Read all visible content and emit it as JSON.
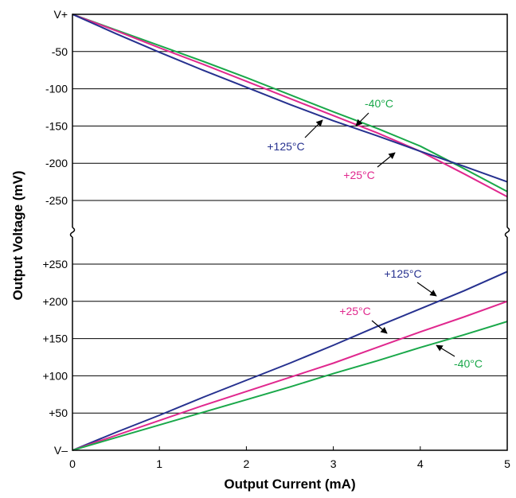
{
  "chart_data": {
    "type": "line",
    "title": "",
    "xlabel": "Output Current (mA)",
    "ylabel": "Output Voltage (mV)",
    "xlim": [
      0,
      5
    ],
    "x_ticks": [
      "0",
      "1",
      "2",
      "3",
      "4",
      "5"
    ],
    "grid": true,
    "legend": "none (series labeled by inline annotations with arrows)",
    "axis_break": "broken y-axis between -250 and +250",
    "panels": [
      {
        "id": "top",
        "reference": "V+",
        "ylim": [
          -250,
          0
        ],
        "y_ticks": [
          "V+",
          "-50",
          "-100",
          "-150",
          "-200",
          "-250"
        ],
        "x": [
          0,
          0.5,
          1,
          1.5,
          2,
          2.5,
          3,
          3.5,
          4,
          4.5,
          5
        ],
        "series": [
          {
            "name": "-40°C",
            "color": "#1aa84a",
            "values": [
              0,
              -21,
              -42,
              -63,
              -85,
              -108,
              -131,
              -153,
              -177,
              -207,
              -238
            ]
          },
          {
            "name": "+25°C",
            "color": "#e0288e",
            "values": [
              0,
              -22,
              -45,
              -67,
              -90,
              -113,
              -136,
              -159,
              -184,
              -214,
              -245
            ]
          },
          {
            "name": "+125°C",
            "color": "#26318f",
            "values": [
              0,
              -26,
              -51,
              -75,
              -98,
              -121,
              -143,
              -163,
              -184,
              -204,
              -225
            ]
          }
        ],
        "annotations": [
          {
            "text": "-40°C",
            "color": "#1aa84a"
          },
          {
            "text": "+125°C",
            "color": "#26318f"
          },
          {
            "text": "+25°C",
            "color": "#e0288e"
          }
        ]
      },
      {
        "id": "bottom",
        "reference": "V–",
        "ylim": [
          0,
          250
        ],
        "y_ticks": [
          "V–",
          "+50",
          "+100",
          "+150",
          "+200",
          "+250"
        ],
        "x": [
          0,
          0.5,
          1,
          1.5,
          2,
          2.5,
          3,
          3.5,
          4,
          4.5,
          5
        ],
        "series": [
          {
            "name": "+125°C",
            "color": "#26318f",
            "values": [
              0,
              24,
              47,
              71,
              94,
              117,
              141,
              166,
              190,
              214,
              240
            ]
          },
          {
            "name": "+25°C",
            "color": "#e0288e",
            "values": [
              0,
              20,
              40,
              60,
              79,
              98,
              117,
              138,
              159,
              179,
              200
            ]
          },
          {
            "name": "-40°C",
            "color": "#1aa84a",
            "values": [
              0,
              17,
              34,
              51,
              68,
              85,
              103,
              120,
              138,
              155,
              173
            ]
          }
        ],
        "annotations": [
          {
            "text": "+125°C",
            "color": "#26318f"
          },
          {
            "text": "+25°C",
            "color": "#e0288e"
          },
          {
            "text": "-40°C",
            "color": "#1aa84a"
          }
        ]
      }
    ]
  }
}
